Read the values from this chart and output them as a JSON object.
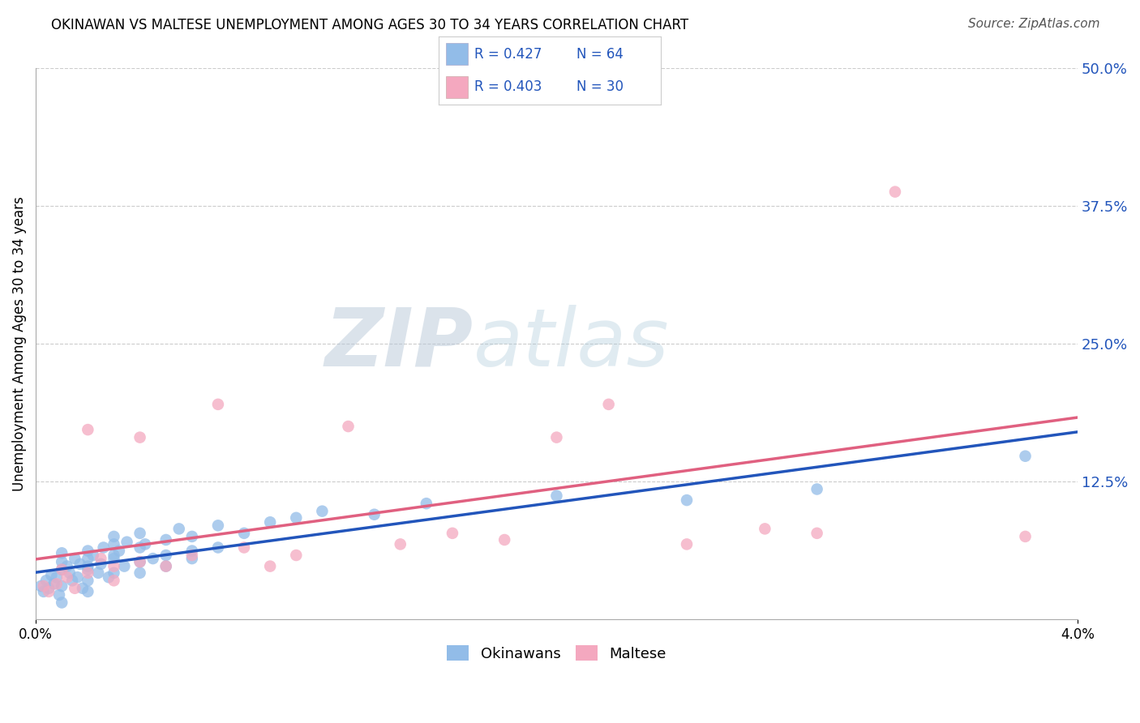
{
  "title": "OKINAWAN VS MALTESE UNEMPLOYMENT AMONG AGES 30 TO 34 YEARS CORRELATION CHART",
  "source": "Source: ZipAtlas.com",
  "ylabel": "Unemployment Among Ages 30 to 34 years",
  "xlim": [
    0.0,
    0.04
  ],
  "ylim": [
    0.0,
    0.5
  ],
  "xtick_positions": [
    0.0,
    0.04
  ],
  "xtick_labels": [
    "0.0%",
    "4.0%"
  ],
  "ytick_positions": [
    0.125,
    0.25,
    0.375,
    0.5
  ],
  "background_color": "#ffffff",
  "watermark_zip": "ZIP",
  "watermark_atlas": "atlas",
  "okinawan_color": "#92bce8",
  "maltese_color": "#f4a8bf",
  "okinawan_line_color": "#2255bb",
  "maltese_line_color": "#e06080",
  "R_okinawan": 0.427,
  "N_okinawan": 64,
  "R_maltese": 0.403,
  "N_maltese": 30,
  "okinawan_x": [
    0.0002,
    0.0003,
    0.0004,
    0.0005,
    0.0006,
    0.0007,
    0.0008,
    0.0009,
    0.001,
    0.001,
    0.001,
    0.001,
    0.001,
    0.0012,
    0.0013,
    0.0014,
    0.0015,
    0.0016,
    0.0017,
    0.0018,
    0.002,
    0.002,
    0.002,
    0.002,
    0.002,
    0.002,
    0.0022,
    0.0024,
    0.0025,
    0.0026,
    0.0028,
    0.003,
    0.003,
    0.003,
    0.003,
    0.003,
    0.0032,
    0.0034,
    0.0035,
    0.004,
    0.004,
    0.004,
    0.004,
    0.0042,
    0.0045,
    0.005,
    0.005,
    0.005,
    0.0055,
    0.006,
    0.006,
    0.006,
    0.007,
    0.007,
    0.008,
    0.009,
    0.01,
    0.011,
    0.013,
    0.015,
    0.02,
    0.025,
    0.03,
    0.038
  ],
  "okinawan_y": [
    0.03,
    0.025,
    0.035,
    0.028,
    0.04,
    0.032,
    0.038,
    0.022,
    0.045,
    0.052,
    0.06,
    0.03,
    0.015,
    0.048,
    0.042,
    0.035,
    0.055,
    0.038,
    0.05,
    0.028,
    0.045,
    0.055,
    0.062,
    0.035,
    0.048,
    0.025,
    0.058,
    0.042,
    0.05,
    0.065,
    0.038,
    0.058,
    0.068,
    0.042,
    0.075,
    0.055,
    0.062,
    0.048,
    0.07,
    0.065,
    0.052,
    0.078,
    0.042,
    0.068,
    0.055,
    0.072,
    0.058,
    0.048,
    0.082,
    0.075,
    0.062,
    0.055,
    0.085,
    0.065,
    0.078,
    0.088,
    0.092,
    0.098,
    0.095,
    0.105,
    0.112,
    0.108,
    0.118,
    0.148
  ],
  "maltese_x": [
    0.0003,
    0.0005,
    0.0008,
    0.001,
    0.0012,
    0.0015,
    0.002,
    0.002,
    0.0025,
    0.003,
    0.003,
    0.004,
    0.004,
    0.005,
    0.006,
    0.007,
    0.008,
    0.009,
    0.01,
    0.012,
    0.014,
    0.016,
    0.018,
    0.02,
    0.022,
    0.025,
    0.028,
    0.03,
    0.033,
    0.038
  ],
  "maltese_y": [
    0.03,
    0.025,
    0.032,
    0.045,
    0.038,
    0.028,
    0.042,
    0.172,
    0.055,
    0.048,
    0.035,
    0.165,
    0.052,
    0.048,
    0.058,
    0.195,
    0.065,
    0.048,
    0.058,
    0.175,
    0.068,
    0.078,
    0.072,
    0.165,
    0.195,
    0.068,
    0.082,
    0.078,
    0.388,
    0.075
  ],
  "grid_color": "#cccccc",
  "legend_color": "#2255bb",
  "title_fontsize": 12,
  "source_fontsize": 11,
  "axis_fontsize": 12,
  "legend_fontsize": 13
}
